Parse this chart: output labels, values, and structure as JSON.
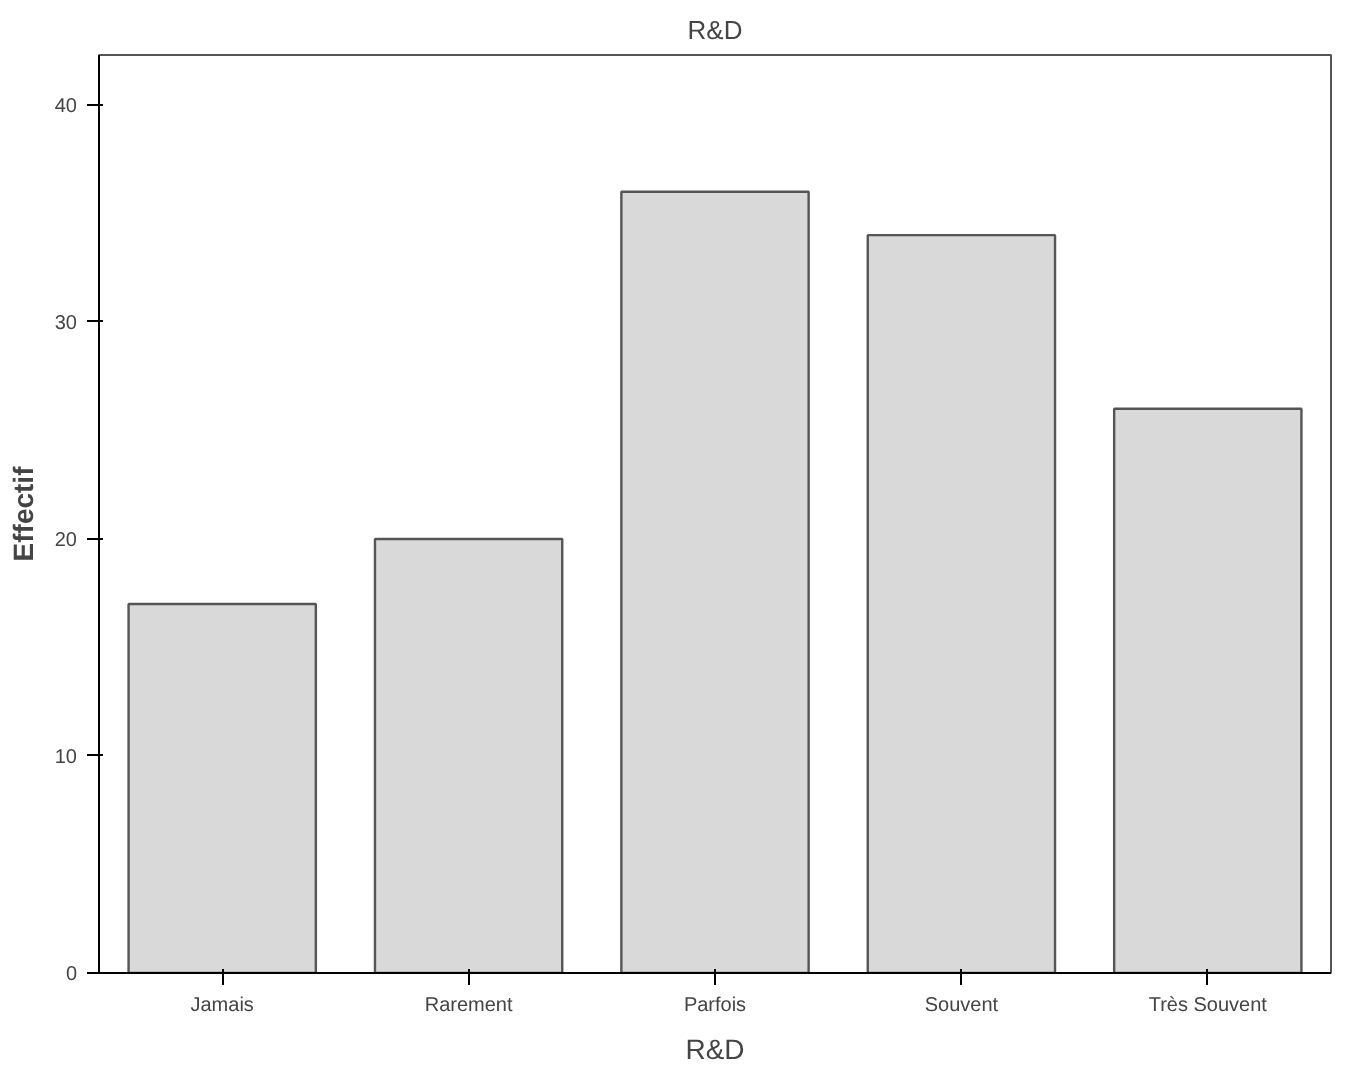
{
  "chart_data": {
    "type": "bar",
    "title": "R&D",
    "xlabel": "R&D",
    "ylabel": "Effectif",
    "categories": [
      "Jamais",
      "Rarement",
      "Parfois",
      "Souvent",
      "Très Souvent"
    ],
    "values": [
      17,
      20,
      36,
      34,
      26
    ],
    "color": "#d9d9d9",
    "ylim": [
      0,
      42.3
    ],
    "yticks": [
      0,
      10,
      20,
      30,
      40
    ],
    "grid": false
  }
}
